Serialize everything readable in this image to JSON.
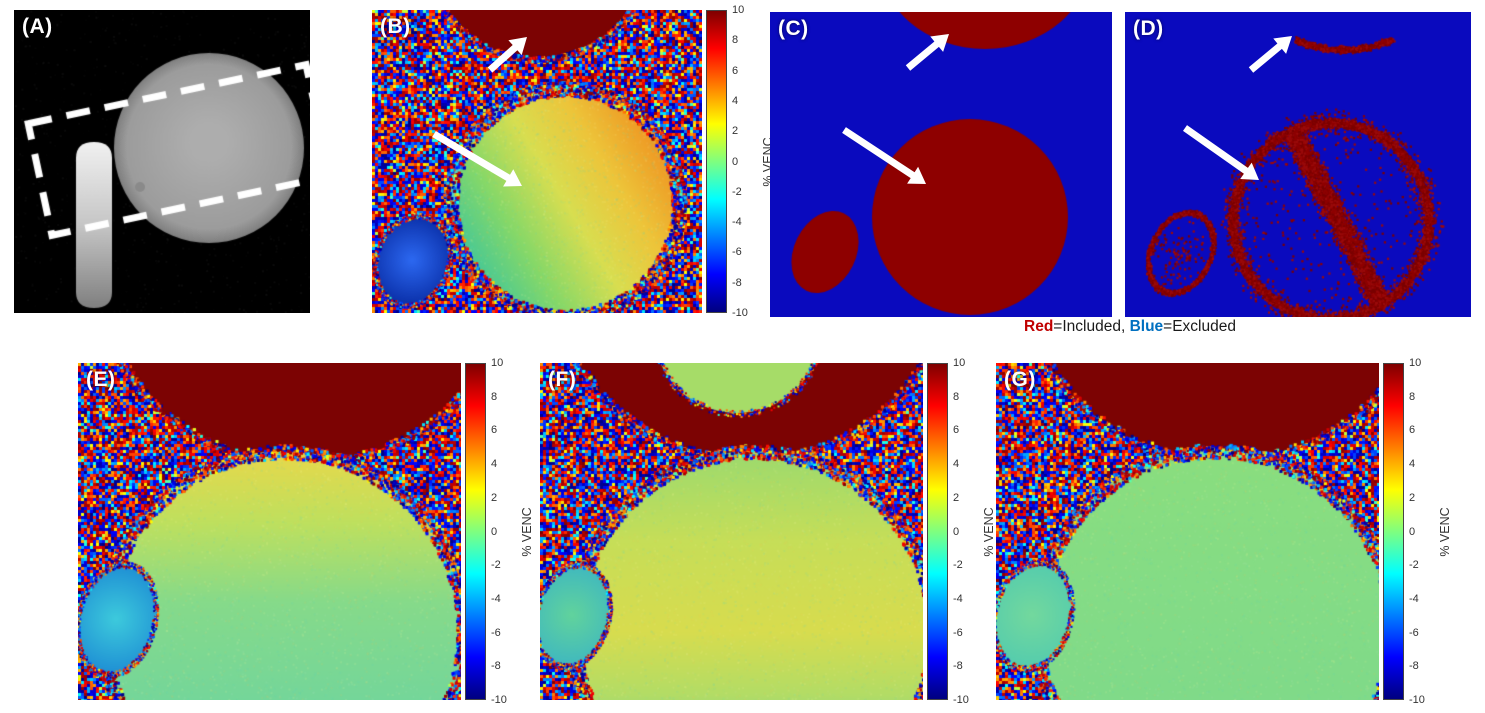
{
  "figure": {
    "panels": {
      "a": {
        "label": "(A)"
      },
      "b": {
        "label": "(B)"
      },
      "c": {
        "label": "(C)"
      },
      "d": {
        "label": "(D)"
      },
      "e": {
        "label": "(E)"
      },
      "f": {
        "label": "(F)"
      },
      "g": {
        "label": "(G)"
      }
    },
    "colorbar": {
      "label": "% VENC",
      "ticks": [
        "10",
        "8",
        "6",
        "4",
        "2",
        "0",
        "-2",
        "-4",
        "-6",
        "-8",
        "-10"
      ],
      "max": 10,
      "min": -10,
      "colors": [
        "#7F0000",
        "#FF0000",
        "#FF7F00",
        "#FFFF00",
        "#7FFF7F",
        "#00FFFF",
        "#007FFF",
        "#0000FF",
        "#00007F"
      ]
    },
    "legend": {
      "red_word": "Red",
      "red_desc": "=Included, ",
      "blue_word": "Blue",
      "blue_desc": "=Excluded",
      "red_color": "#C00000",
      "blue_color": "#0070C0"
    },
    "mask_colors": {
      "included": "#8E0000",
      "excluded": "#0A0ABE"
    }
  }
}
